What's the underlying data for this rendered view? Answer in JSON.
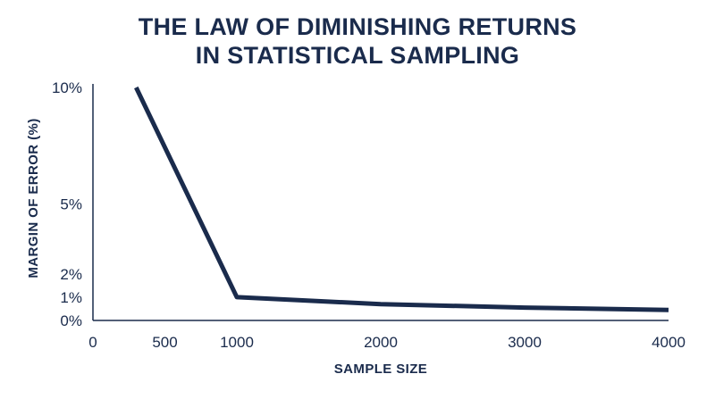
{
  "chart_data": {
    "type": "line",
    "title_lines": [
      "THE LAW OF DIMINISHING RETURNS",
      "IN STATISTICAL SAMPLING"
    ],
    "xlabel": "SAMPLE SIZE",
    "ylabel": "MARGIN OF ERROR (%)",
    "x_ticks": [
      {
        "value": 0,
        "label": "0"
      },
      {
        "value": 500,
        "label": "500"
      },
      {
        "value": 1000,
        "label": "1000"
      },
      {
        "value": 2000,
        "label": "2000"
      },
      {
        "value": 3000,
        "label": "3000"
      },
      {
        "value": 4000,
        "label": "4000"
      }
    ],
    "y_ticks": [
      {
        "value": 0,
        "label": "0%"
      },
      {
        "value": 1,
        "label": "1%"
      },
      {
        "value": 2,
        "label": "2%"
      },
      {
        "value": 5,
        "label": "5%"
      },
      {
        "value": 10,
        "label": "10%"
      }
    ],
    "xlim": [
      0,
      4000
    ],
    "ylim": [
      0,
      10
    ],
    "grid": false,
    "series": [
      {
        "color": "#1a2b4c",
        "x": [
          300,
          1000,
          2000,
          3000,
          4000
        ],
        "y": [
          10,
          1.0,
          0.7,
          0.55,
          0.45
        ]
      }
    ]
  }
}
